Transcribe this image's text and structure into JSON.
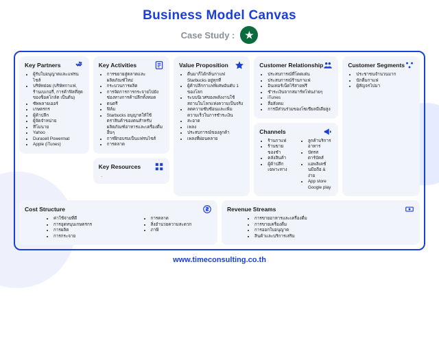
{
  "colors": {
    "primary": "#1a3fd6",
    "cardBg": "#f2f4fb",
    "text": "#1b1b1b",
    "subtitle": "#8a8f98",
    "logoBg": "#0a6b3d",
    "deco1": "#eef1fb",
    "deco2": "#e6ecff"
  },
  "typography": {
    "titleSize": 19,
    "subtitleSize": 13,
    "cardTitleSize": 8.5,
    "listSize": 6.3,
    "footerSize": 11
  },
  "title": "Business Model Canvas",
  "subtitle": "Case Study :",
  "logoGlyph": "★",
  "footer": "www.timeconsulting.co.th",
  "sections": {
    "keyPartners": {
      "title": "Key Partners",
      "items": [
        "ผู้รับใบอนุญาตและแฟรนไชส์",
        "บริษัทย่อย (บริษัทกาแฟ, ร้านเบเกอรี่, การค้าฟิลที่สุดของช็อคโกล์ต เป็นต้น)",
        "ซัพพลายเออร์",
        "เกษตรกร",
        "ผู้ค้าปลีก",
        "ผู้จัดจำหน่าย",
        "ทีโมนาย",
        "Yahoo",
        "Duracell Powermat",
        "Apple (iTunes)"
      ]
    },
    "keyActivities": {
      "title": "Key Activities",
      "items": [
        "การขยายสู่ตลาดและผลิตภัณฑ์ใหม่",
        "กระบวนการผลิต",
        "การจัดการการกระจายไปยังช่องทางการค้าปลีกทั้งหมด",
        "ดนตรี",
        "ฟิล์ม",
        "Starbucks อนุญาตให้ใช้ตราสินค้าของตนสำหรับผลิตภัณฑ์อาหารและเครื่องดื่มอื่นๆ",
        "การฝึกอบรมเป็นแฟรนไชส์",
        "การตลาด"
      ]
    },
    "keyResources": {
      "title": "Key Resources",
      "items": []
    },
    "valueProposition": {
      "title": "Value Proposition",
      "items": [
        "ตื่นมาก็ได้กลิ่นกาแฟ Starbucks อยู่ทุกที่",
        "ผู้ค้าปลีกกาแฟพิเศษอันดับ 1 ของโลก",
        "ระบบนิเวศของพลังงานใช้สถานในโลกแห่งความเป็นจริง",
        "ลดความซับซ้อนและเพิ่มความเร็วในการชำระเงิน",
        "สะอาด",
        "เพลง",
        "ประสบการณ์ของลูกค้า",
        "เพลงที่ผ่อนคลาย"
      ]
    },
    "customerRelationship": {
      "title": "Customer Relationship",
      "items": [
        "ประสบการณ์ที่โดดเด่น",
        "ประสบการณ์ร้านกาแฟ",
        "อินเทอร์เน็ตไร้สายฟรี",
        "ชำระเงินจากสมาร์ทโฟนง่ายๆ",
        "iTunes",
        "สื่อสังคม",
        "การมีส่วนร่วมของโซเชียลมีเดียสูง"
      ]
    },
    "channels": {
      "title": "Channels",
      "itemsLeft": [
        "ร้านกาแฟ",
        "ร้านขายของชำ",
        "คลังสินค้า",
        "ผู้ค้าปลีกเฉพาะทาง"
      ],
      "itemsRight": [
        "ลูกค้าบริการอาหาร",
        "บัตรสตาร์บัคส์",
        "แอพลิเคชั่นมือถือ & ง่าย",
        "App store Google play"
      ]
    },
    "customerSegments": {
      "title": "Customer Segments",
      "items": [
        "ประชาชนจำนวนมาก",
        "นักดื่มกาแฟ",
        "ผู้สัญจรไปมา"
      ]
    },
    "costStructure": {
      "title": "Cost Structure",
      "itemsLeft": [
        "ค่าใช้จ่ายที่ดี",
        "การอุดหนุนเกษตรกร",
        "การผลิต",
        "การกระจาย"
      ],
      "itemsRight": [
        "การตลาด",
        "สิ่งอำนวยความสะดวก",
        "ภาษี"
      ]
    },
    "revenueStreams": {
      "title": "Revenue Streams",
      "items": [
        "การขายอาหารและเครื่องดื่ม",
        "การขายเครื่องดื่ม",
        "การออกใบอนุญาต",
        "สินค้าและบริการเสริม"
      ]
    }
  }
}
